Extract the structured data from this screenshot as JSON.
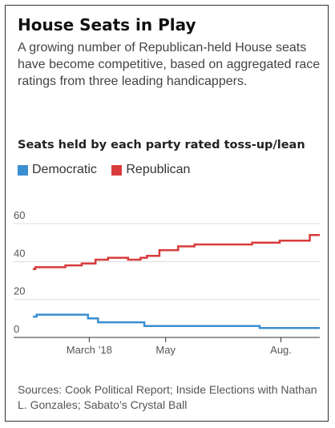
{
  "title": "House Seats in Play",
  "subtitle": "A growing number of Republican-held House seats have become competitive, based on aggregated race ratings from three leading handicappers.",
  "source": "Sources: Cook Political Report; Inside Elections with Nathan L. Gonzales; Sabato’s Crystal Ball",
  "colors": {
    "democratic": "#3a8fd1",
    "republican": "#d83b3b",
    "grid": "#dddddd",
    "axis": "#333333"
  },
  "chart_data": {
    "type": "line",
    "title": "Seats held by each party rated toss-up/lean",
    "xlabel": "",
    "ylabel": "",
    "ylim": [
      0,
      60
    ],
    "yticks": [
      0,
      20,
      40,
      60
    ],
    "xlim": [
      "2018-01-15",
      "2018-09-01"
    ],
    "xticks": [
      {
        "date": "2018-03-01",
        "label": "March ’18"
      },
      {
        "date": "2018-05-01",
        "label": "May"
      },
      {
        "date": "2018-08-01",
        "label": "Aug."
      }
    ],
    "grid": true,
    "legend_position": "top-left",
    "series": [
      {
        "name": "Democratic",
        "color": "#3a8fd1",
        "points": [
          [
            "2018-01-15",
            11
          ],
          [
            "2018-01-18",
            11
          ],
          [
            "2018-01-18",
            12
          ],
          [
            "2018-02-28",
            12
          ],
          [
            "2018-02-28",
            10
          ],
          [
            "2018-03-08",
            10
          ],
          [
            "2018-03-08",
            8
          ],
          [
            "2018-04-14",
            8
          ],
          [
            "2018-04-14",
            6
          ],
          [
            "2018-07-15",
            6
          ],
          [
            "2018-07-15",
            5
          ],
          [
            "2018-09-01",
            5
          ]
        ]
      },
      {
        "name": "Republican",
        "color": "#d83b3b",
        "points": [
          [
            "2018-01-15",
            36
          ],
          [
            "2018-01-17",
            36
          ],
          [
            "2018-01-17",
            37
          ],
          [
            "2018-02-10",
            37
          ],
          [
            "2018-02-10",
            38
          ],
          [
            "2018-02-23",
            38
          ],
          [
            "2018-02-23",
            39
          ],
          [
            "2018-03-06",
            39
          ],
          [
            "2018-03-06",
            41
          ],
          [
            "2018-03-16",
            41
          ],
          [
            "2018-03-16",
            42
          ],
          [
            "2018-04-01",
            42
          ],
          [
            "2018-04-01",
            41
          ],
          [
            "2018-04-11",
            41
          ],
          [
            "2018-04-11",
            42
          ],
          [
            "2018-04-16",
            42
          ],
          [
            "2018-04-16",
            43
          ],
          [
            "2018-04-26",
            43
          ],
          [
            "2018-04-26",
            46
          ],
          [
            "2018-05-11",
            46
          ],
          [
            "2018-05-11",
            48
          ],
          [
            "2018-05-24",
            48
          ],
          [
            "2018-05-24",
            49
          ],
          [
            "2018-07-09",
            49
          ],
          [
            "2018-07-09",
            50
          ],
          [
            "2018-07-31",
            50
          ],
          [
            "2018-07-31",
            51
          ],
          [
            "2018-08-24",
            51
          ],
          [
            "2018-08-24",
            54
          ],
          [
            "2018-09-01",
            54
          ]
        ]
      }
    ]
  }
}
